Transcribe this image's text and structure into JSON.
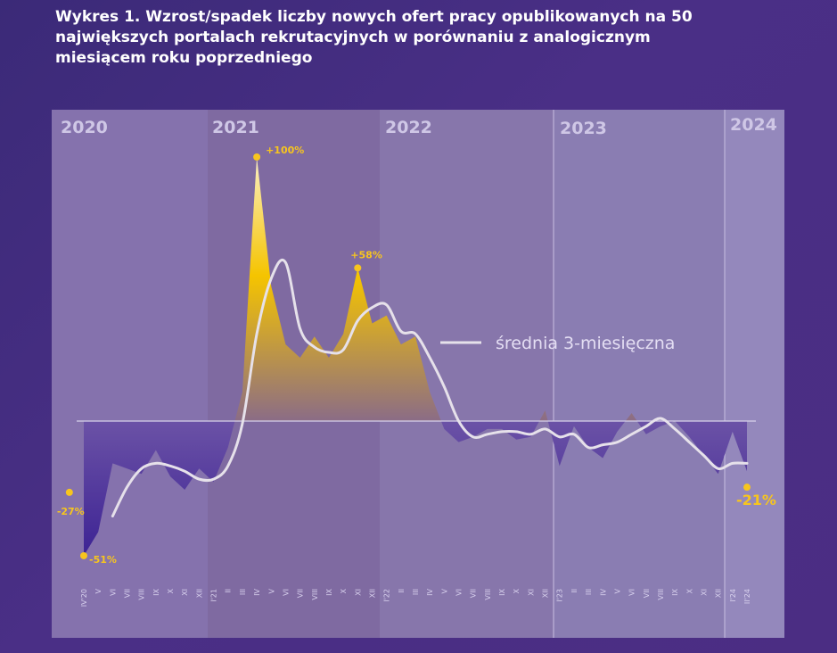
{
  "title": "Wykres 1. Wzrost/spadek liczby nowych ofert pracy opublikowanych na 50 największych portalach rekrutacyjnych w porównaniu z analogicznym miesiącem roku poprzedniego",
  "colors": {
    "positive_fill_top": "#fde9a6",
    "positive_fill_mid": "#f5c400",
    "positive_fill_bottom": "#8a6a8a",
    "negative_fill": "#4a2d92",
    "average_line": "#e5e0ea",
    "annotation": "#f7c51e"
  },
  "chart_data": {
    "type": "area",
    "year_labels": [
      "2020",
      "2021",
      "2022",
      "2023",
      "2024"
    ],
    "x": [
      "IV'20",
      "V",
      "VI",
      "VII",
      "VIII",
      "IX",
      "X",
      "XI",
      "XII",
      "I'21",
      "II",
      "III",
      "IV",
      "V",
      "VI",
      "VII",
      "VIII",
      "IX",
      "X",
      "XI",
      "XII",
      "I'22",
      "II",
      "III",
      "IV",
      "V",
      "VI",
      "VII",
      "VIII",
      "IX",
      "X",
      "XI",
      "XII",
      "I'23",
      "II",
      "III",
      "IV",
      "V",
      "VI",
      "VII",
      "VIII",
      "IX",
      "X",
      "XI",
      "XII",
      "I'24",
      "II'24"
    ],
    "series": [
      {
        "values": [
          -51,
          -42,
          -16,
          -18,
          -20,
          -11,
          -21,
          -26,
          -18,
          -23,
          -10,
          11,
          100,
          51,
          29,
          24,
          32,
          24,
          33,
          58,
          37,
          40,
          29,
          32,
          11,
          -3,
          -8,
          -6,
          -3,
          -3,
          -7,
          -6,
          4,
          -17,
          -2,
          -10,
          -14,
          -4,
          3,
          -5,
          -2,
          0,
          -6,
          -13,
          -20,
          -4,
          -19
        ]
      },
      {
        "name": "średnia 3-miesięczna",
        "values": [
          null,
          null,
          -36,
          -25,
          -18,
          -16,
          -17,
          -19,
          -22,
          -22,
          -17,
          -1,
          33,
          54,
          60,
          35,
          28,
          26,
          27,
          38,
          43,
          44,
          34,
          33,
          24,
          13,
          0,
          -6,
          -5,
          -4,
          -4,
          -5,
          -3,
          -6,
          -5,
          -10,
          -9,
          -8,
          -5,
          -2,
          1,
          -3,
          -8,
          -13,
          -18,
          -16,
          -16
        ]
      }
    ],
    "ylim": [
      -60,
      110
    ],
    "annotations": [
      {
        "label": "+100%",
        "value": 100
      },
      {
        "label": "+58%",
        "value": 58
      },
      {
        "label": "-51%",
        "value": -51
      },
      {
        "label": "-27%",
        "value": -27
      },
      {
        "label": "-21%",
        "value": -21
      }
    ],
    "legend_label": "średnia 3-miesięczna",
    "grid": false,
    "legend": "right, inline with line"
  }
}
